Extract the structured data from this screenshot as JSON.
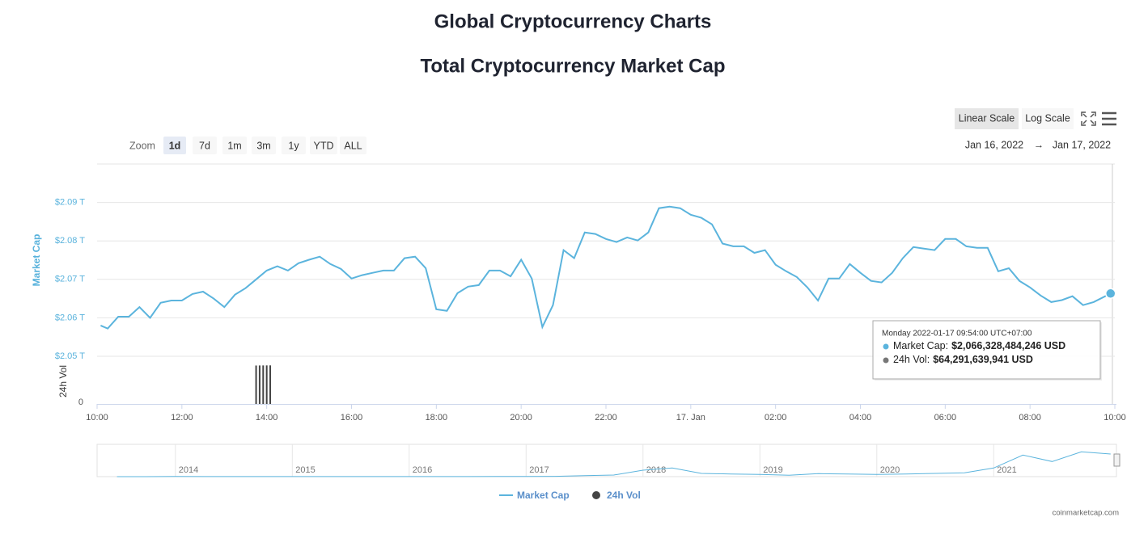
{
  "header": {
    "title": "Global Cryptocurrency Charts",
    "subtitle": "Total Cryptocurrency Market Cap"
  },
  "zoom": {
    "label": "Zoom",
    "buttons": [
      "1d",
      "7d",
      "1m",
      "3m",
      "1y",
      "YTD",
      "ALL"
    ]
  },
  "scale_buttons": [
    "Linear Scale",
    "Log Scale"
  ],
  "date_range": {
    "from": "Jan 16, 2022",
    "arrow": "→",
    "to": "Jan 17, 2022"
  },
  "chart_data": {
    "type": "line",
    "y_label": "Market Cap",
    "y2_label": "24h Vol",
    "xlim": [
      "10:00",
      "10:00"
    ],
    "xticks": [
      "10:00",
      "12:00",
      "14:00",
      "16:00",
      "18:00",
      "20:00",
      "22:00",
      {
        "value": "00:00",
        "label": "17. Jan"
      },
      "02:00",
      "04:00",
      "06:00",
      "08:00",
      "10:00"
    ],
    "ylim": [
      2.05,
      2.1
    ],
    "yticks": [
      {
        "value": 2.05,
        "label": "$2.05 T"
      },
      {
        "value": 2.06,
        "label": "$2.06 T"
      },
      {
        "value": 2.07,
        "label": "$2.07 T"
      },
      {
        "value": 2.08,
        "label": "$2.08 T"
      },
      {
        "value": 2.09,
        "label": "$2.09 T"
      }
    ],
    "y2lim": [
      0,
      70000000000
    ],
    "y2ticks": [
      0
    ],
    "grid": true,
    "series": [
      {
        "name": "Market Cap",
        "color": "#5bb4dd",
        "x": [
          "10:05",
          "10:15",
          "10:30",
          "10:45",
          "11:00",
          "11:15",
          "11:30",
          "11:45",
          "12:00",
          "12:15",
          "12:30",
          "12:45",
          "13:00",
          "13:15",
          "13:30",
          "13:45",
          "14:00",
          "14:15",
          "14:30",
          "14:45",
          "15:00",
          "15:15",
          "15:30",
          "15:45",
          "16:00",
          "16:15",
          "16:30",
          "16:45",
          "17:00",
          "17:15",
          "17:30",
          "17:45",
          "18:00",
          "18:15",
          "18:30",
          "18:45",
          "19:00",
          "19:15",
          "19:30",
          "19:45",
          "20:00",
          "20:15",
          "20:30",
          "20:45",
          "21:00",
          "21:15",
          "21:30",
          "21:45",
          "22:00",
          "22:15",
          "22:30",
          "22:45",
          "23:00",
          "23:15",
          "23:30",
          "23:45",
          "00:00",
          "00:15",
          "00:30",
          "00:45",
          "01:00",
          "01:15",
          "01:30",
          "01:45",
          "02:00",
          "02:15",
          "02:30",
          "02:45",
          "03:00",
          "03:15",
          "03:30",
          "03:45",
          "04:00",
          "04:15",
          "04:30",
          "04:45",
          "05:00",
          "05:15",
          "05:30",
          "05:45",
          "06:00",
          "06:15",
          "06:30",
          "06:45",
          "07:00",
          "07:15",
          "07:30",
          "07:45",
          "08:00",
          "08:15",
          "08:30",
          "08:45",
          "09:00",
          "09:15",
          "09:30",
          "09:54"
        ],
        "values": [
          2.058,
          2.0572,
          2.0603,
          2.0603,
          2.0628,
          2.06,
          2.0639,
          2.0645,
          2.0645,
          2.0662,
          2.0668,
          2.065,
          2.0628,
          2.066,
          2.0677,
          2.07,
          2.0723,
          2.0734,
          2.0723,
          2.0742,
          2.0751,
          2.0759,
          2.074,
          2.0727,
          2.0702,
          2.0711,
          2.0717,
          2.0723,
          2.0723,
          2.0755,
          2.0759,
          2.0729,
          2.0622,
          2.0618,
          2.0664,
          2.0681,
          2.0685,
          2.0723,
          2.0723,
          2.0708,
          2.0751,
          2.0702,
          2.0576,
          2.0633,
          2.0776,
          2.0755,
          2.0822,
          2.0818,
          2.0805,
          2.0797,
          2.0809,
          2.0801,
          2.0822,
          2.0885,
          2.0889,
          2.0885,
          2.0868,
          2.086,
          2.0843,
          2.0793,
          2.0786,
          2.0786,
          2.0769,
          2.0776,
          2.0738,
          2.0721,
          2.0706,
          2.0679,
          2.0645,
          2.0702,
          2.0702,
          2.074,
          2.0717,
          2.0696,
          2.0692,
          2.0717,
          2.0755,
          2.0784,
          2.078,
          2.0776,
          2.0805,
          2.0805,
          2.0786,
          2.0782,
          2.0782,
          2.0721,
          2.0729,
          2.0696,
          2.0679,
          2.0658,
          2.0641,
          2.0646,
          2.0656,
          2.0633,
          2.0641,
          2.066328484246
        ]
      },
      {
        "name": "24h Vol",
        "color": "#444444",
        "axis": "y2",
        "x": [
          "13:45",
          "13:50",
          "13:55",
          "14:00",
          "14:05"
        ],
        "values": [
          64000000000,
          64100000000,
          64150000000,
          64200000000,
          64250000000
        ]
      }
    ],
    "tooltip": {
      "date": "Monday 2022-01-17 09:54:00 UTC+07:00",
      "lines": [
        {
          "name": "Market Cap:",
          "label": "$2,066,328,484,246 USD"
        },
        {
          "name": "24h Vol:",
          "label": "$64,291,639,941 USD"
        }
      ]
    },
    "navigator": {
      "xlim": [
        2013.33,
        2022.05
      ],
      "xticks": [
        2014,
        2015,
        2016,
        2017,
        2018,
        2019,
        2020,
        2021
      ],
      "ylim": [
        0,
        3
      ],
      "x": [
        2013.5,
        2013.75,
        2014,
        2014.25,
        2014.5,
        2014.75,
        2015,
        2015.25,
        2015.5,
        2015.75,
        2016,
        2016.25,
        2016.5,
        2016.75,
        2017,
        2017.25,
        2017.5,
        2017.75,
        2018,
        2018.25,
        2018.5,
        2018.75,
        2019,
        2019.25,
        2019.5,
        2019.75,
        2020,
        2020.25,
        2020.5,
        2020.75,
        2021,
        2021.25,
        2021.5,
        2021.75,
        2022
      ],
      "values": [
        0.001,
        0.002,
        0.012,
        0.007,
        0.008,
        0.006,
        0.005,
        0.004,
        0.004,
        0.005,
        0.007,
        0.009,
        0.01,
        0.012,
        0.018,
        0.028,
        0.09,
        0.15,
        0.6,
        0.8,
        0.3,
        0.25,
        0.2,
        0.13,
        0.28,
        0.25,
        0.2,
        0.25,
        0.3,
        0.35,
        0.8,
        2.0,
        1.4,
        2.3,
        2.1
      ]
    }
  },
  "credit": "coinmarketcap.com"
}
